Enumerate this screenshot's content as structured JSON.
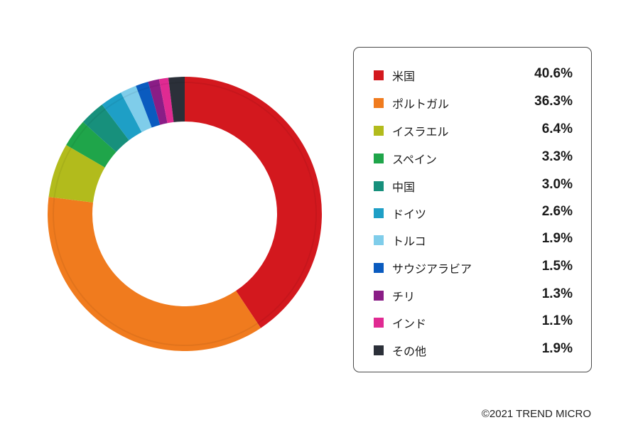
{
  "chart_data": {
    "type": "pie",
    "categories": [
      "米国",
      "ポルトガル",
      "イスラエル",
      "スペイン",
      "中国",
      "ドイツ",
      "トルコ",
      "サウジアラビア",
      "チリ",
      "インド",
      "その他"
    ],
    "values": [
      40.6,
      36.3,
      6.4,
      3.3,
      3.0,
      2.6,
      1.9,
      1.5,
      1.3,
      1.1,
      1.9
    ],
    "value_labels": [
      "40.6%",
      "36.3%",
      "6.4%",
      "3.3%",
      "3.0%",
      "2.6%",
      "1.9%",
      "1.5%",
      "1.3%",
      "1.1%",
      "1.9%"
    ],
    "colors": [
      "#d3181e",
      "#f07b1e",
      "#b2bb1c",
      "#1fa54a",
      "#17907c",
      "#1e9fc6",
      "#7fcdea",
      "#0a5bbf",
      "#8a1d86",
      "#e02a92",
      "#2b3039"
    ],
    "donut": true,
    "legend_position": "right"
  },
  "footer": {
    "copyright": "©2021 TREND MICRO"
  }
}
